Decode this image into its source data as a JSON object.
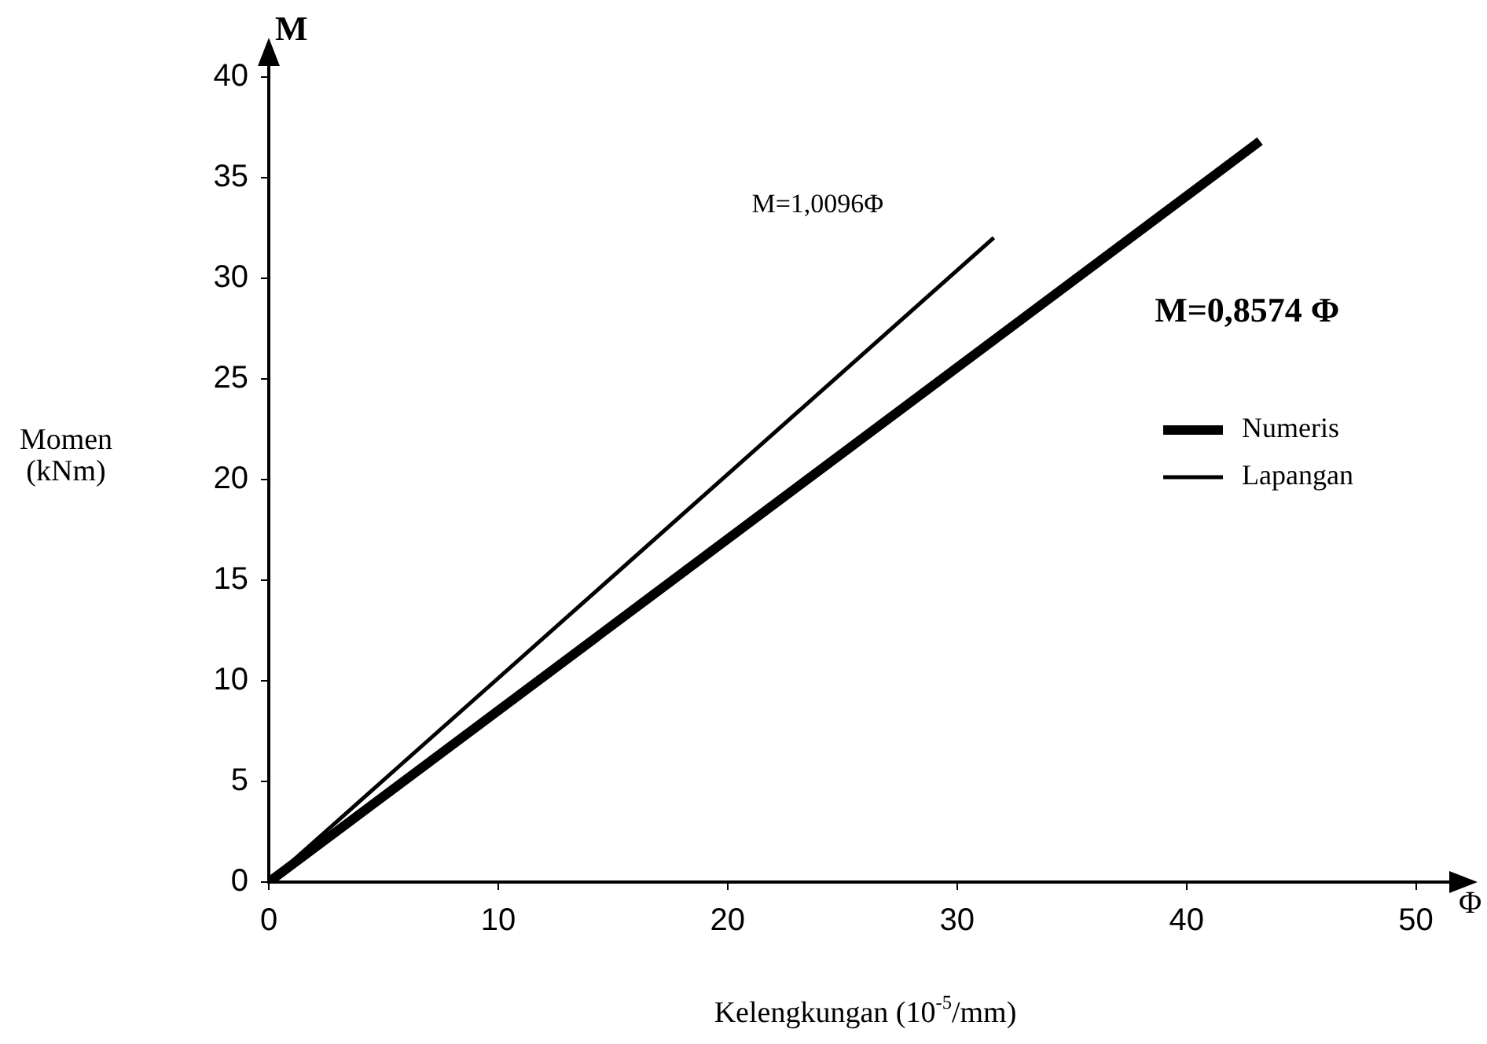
{
  "chart_data": {
    "type": "line",
    "xlabel": "Kelengkungan (10$^{-5}$/mm)",
    "ylabel": "Momen (kNm)",
    "series": [
      {
        "name": "Numeris",
        "color": "#000000",
        "x": [
          0,
          43.2
        ],
        "values": [
          0,
          36.8
        ]
      },
      {
        "name": "Lapangan",
        "color": "#000000",
        "x": [
          0,
          31.6
        ],
        "values": [
          0,
          32.0
        ]
      }
    ],
    "xlim": [
      0,
      52
    ],
    "xticks": [
      0,
      10,
      20,
      30,
      40,
      50
    ],
    "ylim": [
      0,
      41
    ],
    "yticks": [
      0,
      5,
      10,
      15,
      20,
      25,
      30,
      35,
      40
    ],
    "annotations": [
      "M=1,0096Φ",
      "M=0,8574 Φ",
      "M",
      "Φ"
    ],
    "grid": false,
    "legend": "right",
    "marker": "none",
    "line_style": "solid"
  }
}
